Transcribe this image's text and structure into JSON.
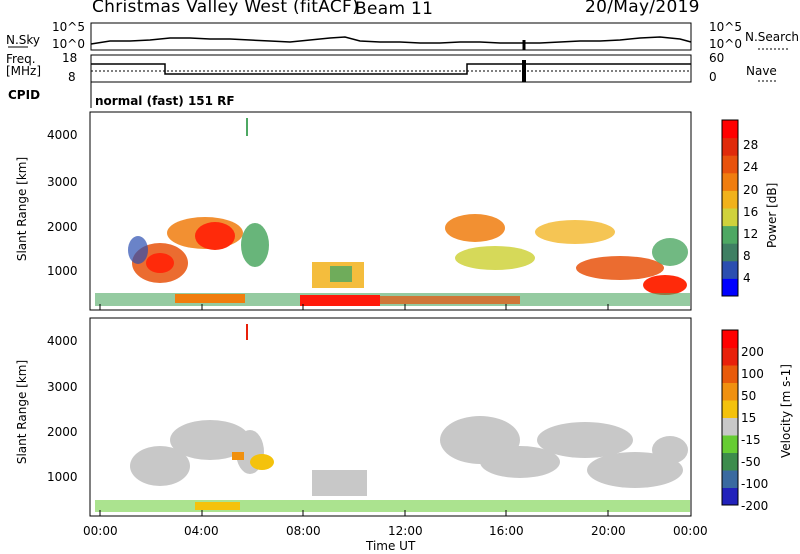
{
  "header": {
    "title": "Christmas Valley West (fitACF)",
    "beam": "Beam 11",
    "date": "20/May/2019"
  },
  "strip_panels": {
    "nsky_label": "N.Sky",
    "nsky_ticks": [
      "10^5",
      "10^0"
    ],
    "nsearch_label": "N.Search",
    "nsearch_ticks": [
      "10^5",
      "10^0"
    ],
    "freq_label_line1": "Freq.",
    "freq_label_line2": "[MHz]",
    "freq_ticks": [
      "18",
      "8"
    ],
    "nave_label": "Nave",
    "nave_ticks": [
      "60",
      "0"
    ],
    "cpid_label": "CPID",
    "cpid_value": "normal (fast) 151 RF"
  },
  "chart_data": [
    {
      "type": "heatmap",
      "name": "power",
      "ylabel": "Slant Range [km]",
      "yticks": [
        "4000",
        "3000",
        "2000",
        "1000"
      ],
      "ylim": [
        200,
        4500
      ],
      "xlim_hours": [
        0,
        24
      ],
      "colorbar": {
        "label": "Power [dB]",
        "ticks": [
          "28",
          "24",
          "20",
          "16",
          "12",
          "8",
          "4"
        ],
        "colors": [
          "#0000ff",
          "#2b4eb0",
          "#3f7f63",
          "#4ea863",
          "#cfd23c",
          "#f2b21b",
          "#f07d0e",
          "#e8520c",
          "#e02a0a",
          "#ff0000"
        ]
      }
    },
    {
      "type": "heatmap",
      "name": "velocity",
      "ylabel": "Slant Range [km]",
      "yticks": [
        "4000",
        "3000",
        "2000",
        "1000"
      ],
      "ylim": [
        200,
        4500
      ],
      "xlim_hours": [
        0,
        24
      ],
      "xlabel": "Time UT",
      "xticks": [
        "00:00",
        "04:00",
        "08:00",
        "12:00",
        "16:00",
        "20:00",
        "00:00"
      ],
      "colorbar": {
        "label": "Velocity [m s-1]",
        "ticks": [
          "200",
          "100",
          "50",
          "15",
          "-15",
          "-50",
          "-100",
          "-200"
        ],
        "colors": [
          "#2222bb",
          "#3a6aa0",
          "#3c8c4c",
          "#66cc33",
          "#c8c8c8",
          "#f4c20c",
          "#f0900f",
          "#e85a0a",
          "#e8200a",
          "#ff0000"
        ]
      }
    }
  ]
}
